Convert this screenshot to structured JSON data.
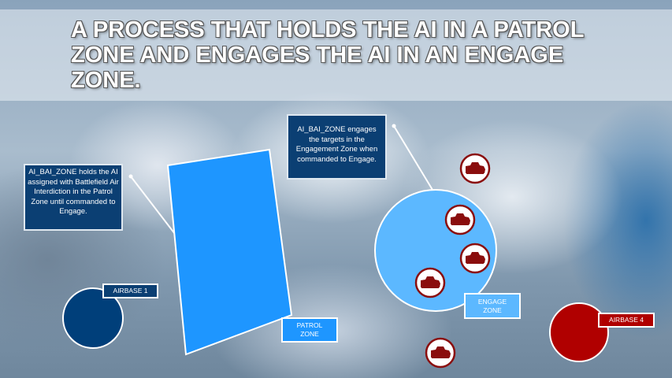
{
  "title": "A process that holds the AI in a Patrol Zone and engages the AI in an Engage Zone.",
  "callouts": {
    "patrol": "AI_BAI_ZONE holds the AI assigned with Battlefield Air Interdiction in the Patrol Zone until commanded to Engage.",
    "engage": "AI_BAI_ZONE engages the targets in the Engagement Zone when commanded to Engage."
  },
  "labels": {
    "airbase1": "AIRBASE 1",
    "patrol_zone": "PATROL ZONE",
    "engage_zone": "ENGAGE ZONE",
    "airbase4": "AIRBASE 4"
  },
  "icons": {
    "target": "tank-icon"
  },
  "colors": {
    "blue_airbase": "#003f7a",
    "red_airbase": "#b00000",
    "patrol_zone": "#1e96ff",
    "engage_zone": "#5cb8ff",
    "callout": "#0b3f73"
  }
}
